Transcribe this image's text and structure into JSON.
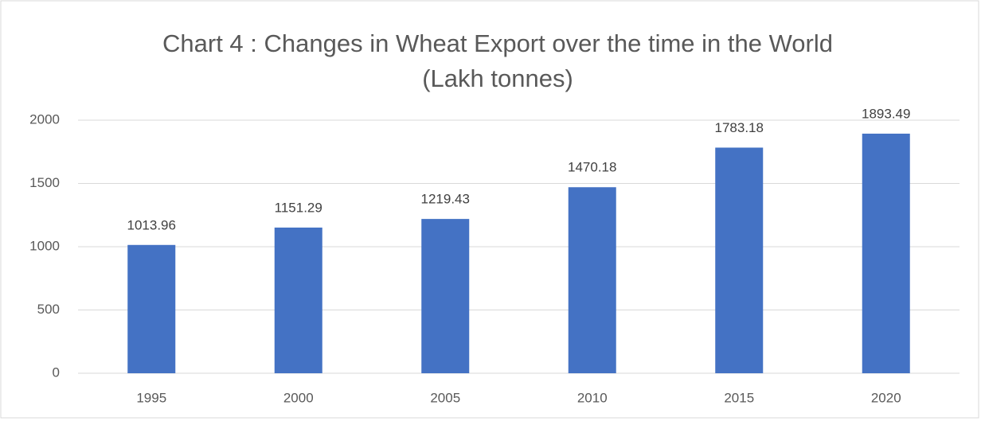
{
  "chart_data": {
    "type": "bar",
    "title": [
      "Chart 4 : Changes in Wheat Export over the time in the World",
      "(Lakh tonnes)"
    ],
    "categories": [
      "1995",
      "2000",
      "2005",
      "2010",
      "2015",
      "2020"
    ],
    "values": [
      1013.96,
      1151.29,
      1219.43,
      1470.18,
      1783.18,
      1893.49
    ],
    "color": "#4472c4",
    "ylim": [
      0,
      2000
    ],
    "yticks": [
      0,
      500,
      1000,
      1500,
      2000
    ],
    "grid": true
  }
}
